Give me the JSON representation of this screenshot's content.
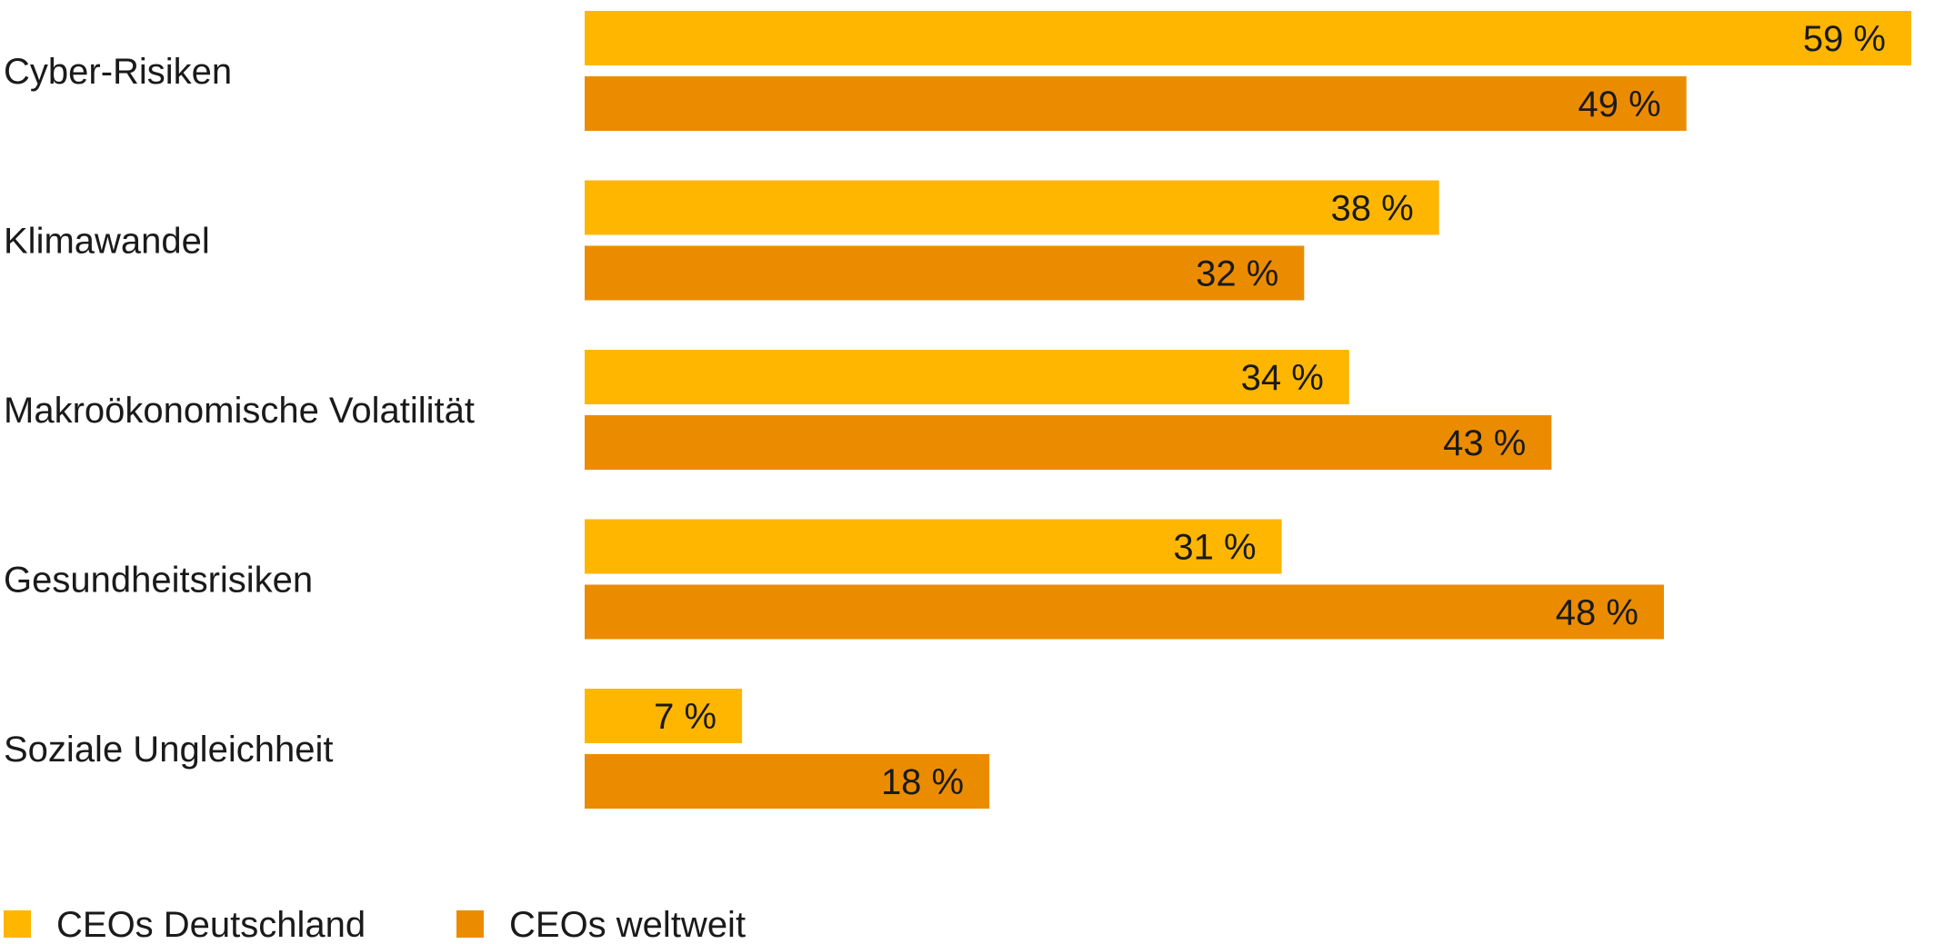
{
  "chart_data": {
    "type": "bar",
    "orientation": "horizontal",
    "categories": [
      "Cyber-Risiken",
      "Klimawandel",
      "Makroökonomische Volatilität",
      "Gesundheitsrisiken",
      "Soziale Ungleichheit"
    ],
    "series": [
      {
        "name": "CEOs Deutschland",
        "values": [
          59,
          38,
          34,
          31,
          7
        ],
        "color": "#FFB600"
      },
      {
        "name": "CEOs weltweit",
        "values": [
          49,
          32,
          43,
          48,
          18
        ],
        "color": "#EB8C00"
      }
    ],
    "value_suffix": " %",
    "xlim": [
      0,
      59
    ],
    "grid": false,
    "legend": "bottom-left"
  }
}
